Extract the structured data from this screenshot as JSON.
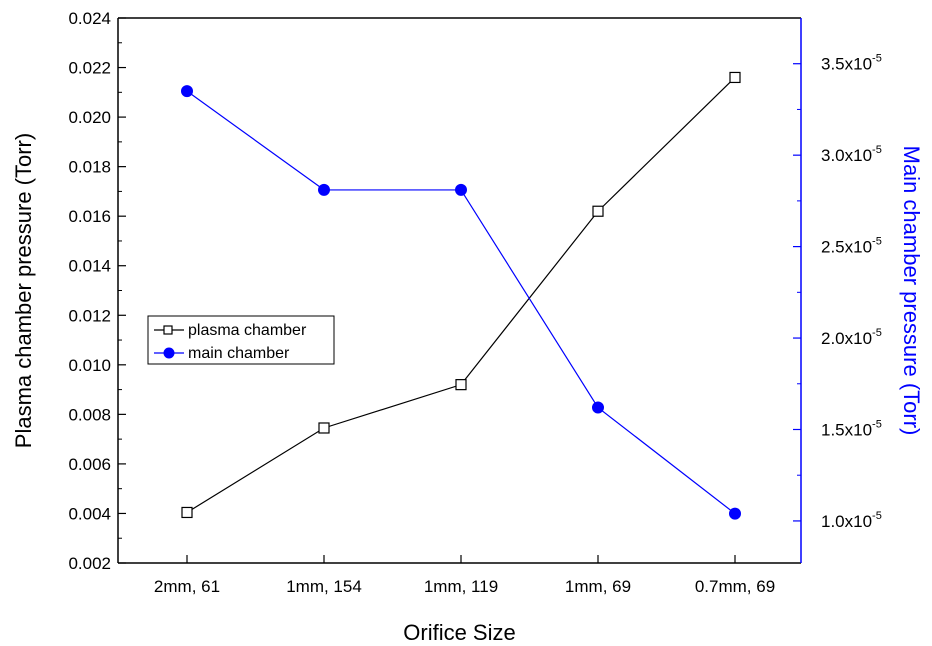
{
  "chart_data": {
    "type": "line",
    "title": "",
    "xlabel": "Orifice Size",
    "categories": [
      "2mm, 61",
      "1mm, 154",
      "1mm, 119",
      "1mm, 69",
      "0.7mm, 69"
    ],
    "y_left": {
      "label": "Plasma chamber pressure (Torr)",
      "range": [
        0.002,
        0.024
      ],
      "ticks": [
        "0.002",
        "0.004",
        "0.006",
        "0.008",
        "0.010",
        "0.012",
        "0.014",
        "0.016",
        "0.018",
        "0.020",
        "0.022",
        "0.024"
      ],
      "color": "#000000"
    },
    "y_right": {
      "label": "Main chamber pressure (Torr)",
      "range": [
        7.7e-06,
        3.75e-05
      ],
      "ticks": [
        {
          "value": 1e-05,
          "mantissa": "1.0x10",
          "exponent": "-5"
        },
        {
          "value": 1.5e-05,
          "mantissa": "1.5x10",
          "exponent": "-5"
        },
        {
          "value": 2e-05,
          "mantissa": "2.0x10",
          "exponent": "-5"
        },
        {
          "value": 2.5e-05,
          "mantissa": "2.5x10",
          "exponent": "-5"
        },
        {
          "value": 3e-05,
          "mantissa": "3.0x10",
          "exponent": "-5"
        },
        {
          "value": 3.5e-05,
          "mantissa": "3.5x10",
          "exponent": "-5"
        }
      ],
      "color": "#0000ff"
    },
    "series": [
      {
        "name": "plasma chamber",
        "axis": "left",
        "marker": "open-square",
        "color": "#000000",
        "values": [
          0.00404,
          0.00745,
          0.0092,
          0.0162,
          0.0216
        ]
      },
      {
        "name": "main chamber",
        "axis": "right",
        "marker": "filled-circle",
        "color": "#0000ff",
        "values": [
          3.35e-05,
          2.81e-05,
          2.81e-05,
          1.62e-05,
          1.04e-05
        ]
      }
    ],
    "legend": {
      "position": "center-left"
    },
    "grid": false
  }
}
